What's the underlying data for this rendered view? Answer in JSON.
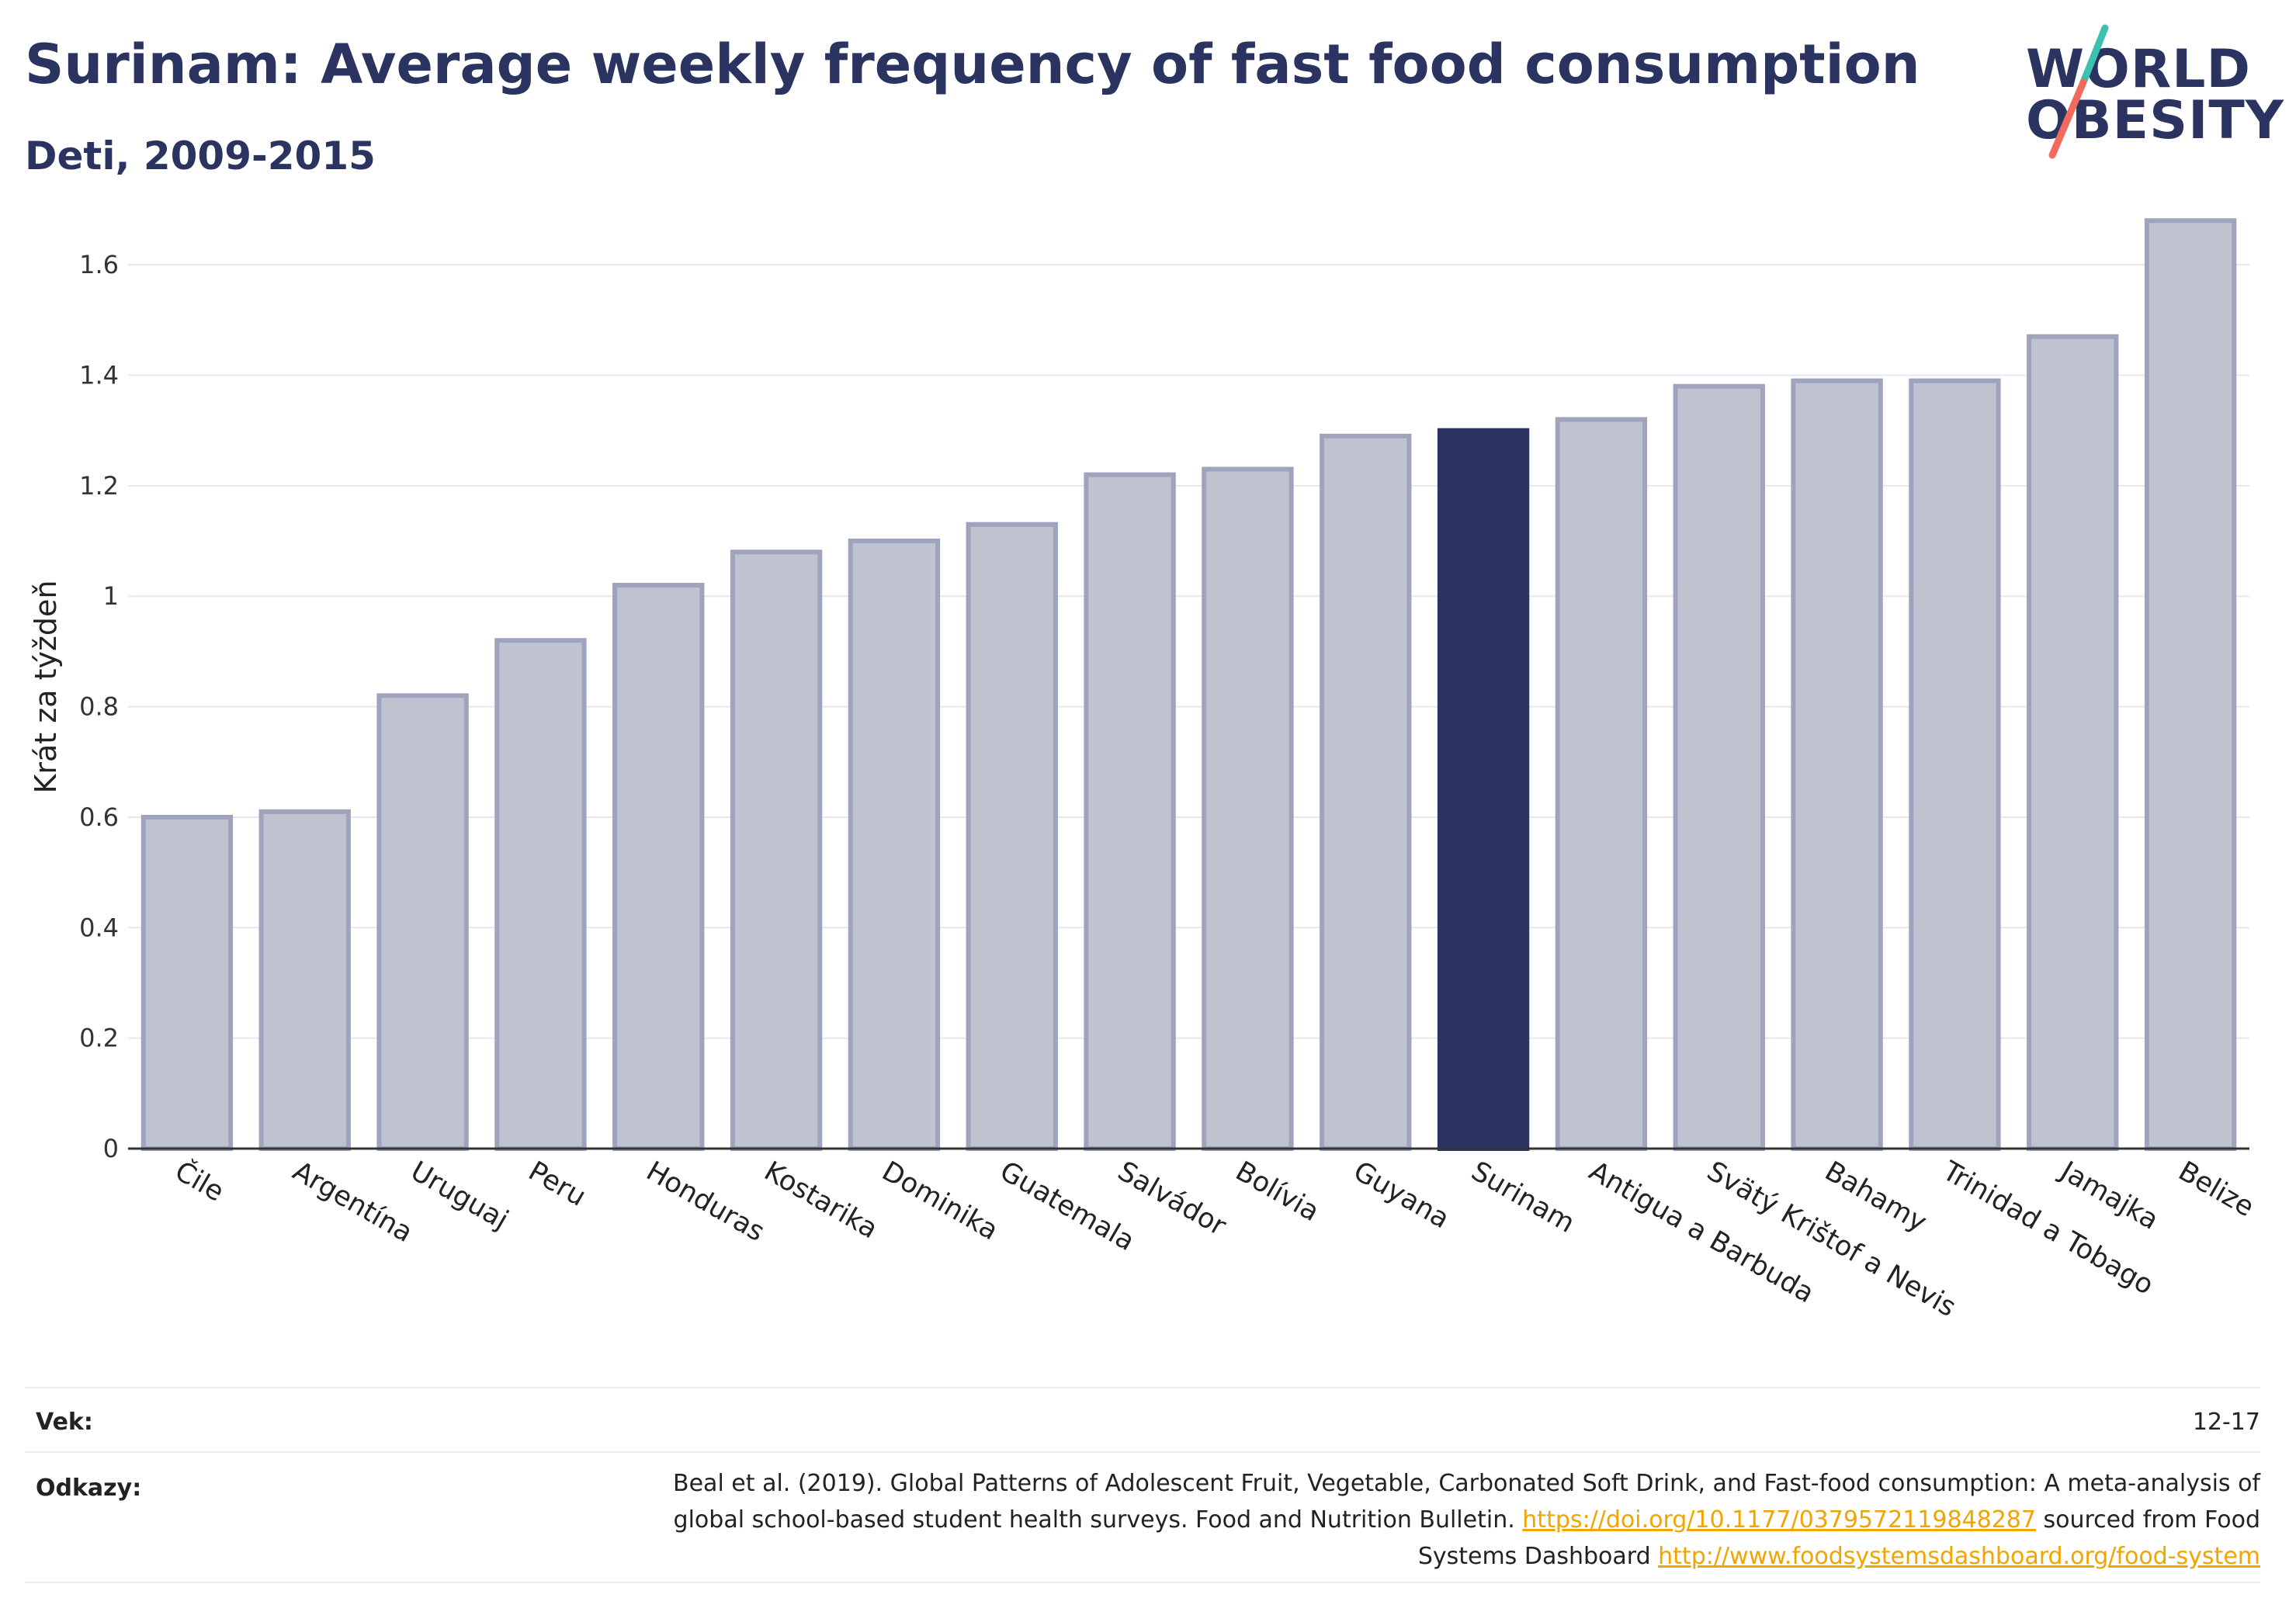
{
  "header": {
    "title": "Surinam: Average weekly frequency of fast food consumption",
    "subtitle": "Deti, 2009-2015",
    "logo_line1": "WORLD",
    "logo_line2": "OBESITY"
  },
  "colors": {
    "title": "#2b3461",
    "bar_default": "#bfc2cf",
    "bar_default_stroke": "#9fa3bd",
    "bar_highlight": "#2b3461",
    "link": "#f0a500",
    "logo_slash_top": "#3cc0b0",
    "logo_slash_bottom": "#f06b5b"
  },
  "chart_data": {
    "type": "bar",
    "title": "Surinam: Average weekly frequency of fast food consumption",
    "subtitle": "Deti, 2009-2015",
    "xlabel": "",
    "ylabel": "Krát za týždeň",
    "ylim": [
      0,
      1.7
    ],
    "yticks": [
      0,
      0.2,
      0.4,
      0.6,
      0.8,
      1,
      1.2,
      1.4,
      1.6
    ],
    "ytick_labels": [
      "0",
      "0.2",
      "0.4",
      "0.6",
      "0.8",
      "1",
      "1.2",
      "1.4",
      "1.6"
    ],
    "grid": true,
    "highlight": "Surinam",
    "categories": [
      "Čile",
      "Argentína",
      "Uruguaj",
      "Peru",
      "Honduras",
      "Kostarika",
      "Dominika",
      "Guatemala",
      "Salvádor",
      "Bolívia",
      "Guyana",
      "Surinam",
      "Antigua a Barbuda",
      "Svätý Krištof a Nevis",
      "Bahamy",
      "Trinidad a Tobago",
      "Jamajka",
      "Belize"
    ],
    "values": [
      0.6,
      0.61,
      0.82,
      0.92,
      1.02,
      1.08,
      1.1,
      1.13,
      1.22,
      1.23,
      1.29,
      1.3,
      1.32,
      1.38,
      1.39,
      1.39,
      1.47,
      1.68
    ]
  },
  "footer": {
    "age_label": "Vek:",
    "age_value": "12-17",
    "refs_label": "Odkazy:",
    "refs_text_1": "Beal et al. (2019). Global Patterns of Adolescent Fruit, Vegetable, Carbonated Soft Drink, and Fast-food consumption: A meta-analysis of global school-based student health surveys. Food and Nutrition Bulletin. ",
    "refs_link_1": "https://doi.org/10.1177/0379572119848287",
    "refs_text_2": " sourced from Food Systems Dashboard ",
    "refs_link_2": "http://www.foodsystemsdashboard.org/food-system"
  }
}
